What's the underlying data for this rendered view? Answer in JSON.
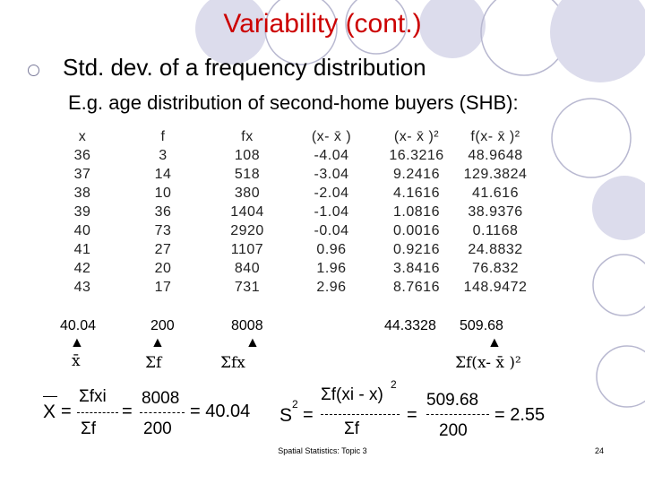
{
  "slide": {
    "title": "Variability (cont.)",
    "bullet": "Std. dev. of a frequency distribution",
    "subtitle": "E.g. age distribution of second-home buyers (SHB):"
  },
  "table": {
    "headers": [
      "x",
      "f",
      "fx",
      "(x- x̄ )",
      "(x- x̄ )²",
      "f(x- x̄ )²"
    ],
    "rows": [
      [
        "36",
        "3",
        "108",
        "-4.04",
        "16.3216",
        "48.9648"
      ],
      [
        "37",
        "14",
        "518",
        "-3.04",
        "9.2416",
        "129.3824"
      ],
      [
        "38",
        "10",
        "380",
        "-2.04",
        "4.1616",
        "41.616"
      ],
      [
        "39",
        "36",
        "1404",
        "-1.04",
        "1.0816",
        "38.9376"
      ],
      [
        "40",
        "73",
        "2920",
        "-0.04",
        "0.0016",
        "0.1168"
      ],
      [
        "41",
        "27",
        "1107",
        "0.96",
        "0.9216",
        "24.8832"
      ],
      [
        "42",
        "20",
        "840",
        "1.96",
        "3.8416",
        "76.832"
      ],
      [
        "43",
        "17",
        "731",
        "2.96",
        "8.7616",
        "148.9472"
      ]
    ],
    "sums": {
      "x_mean": "40.04",
      "f_sum": "200",
      "fx_sum": "8008",
      "sq_sum": "44.3328",
      "fsq_sum": "509.68"
    },
    "arrow_labels": {
      "mean": "x̄",
      "sum_f": "Σf",
      "sum_fx": "Σfx",
      "sum_fsq": "Σf(x- x̄ )²"
    }
  },
  "formulas": {
    "mean": {
      "lhs": "X",
      "numerator": "Σfxi",
      "numerator_value": "8008",
      "denominator": "Σf",
      "denominator_value": "200",
      "result": "= 40.04"
    },
    "variance": {
      "lhs": "S",
      "lhs_exp": "2",
      "numerator": "Σf(xi - x)",
      "numerator_exp": "2",
      "numerator_value": "509.68",
      "denominator": "Σf",
      "denominator_value": "200",
      "result": "= 2.55"
    }
  },
  "footer": {
    "text": "Spatial Statistics: Topic 3",
    "page": "24"
  },
  "colors": {
    "title": "#cc0000",
    "circle_fill": "#dcdcec",
    "circle_outline": "#b8b8d0"
  }
}
